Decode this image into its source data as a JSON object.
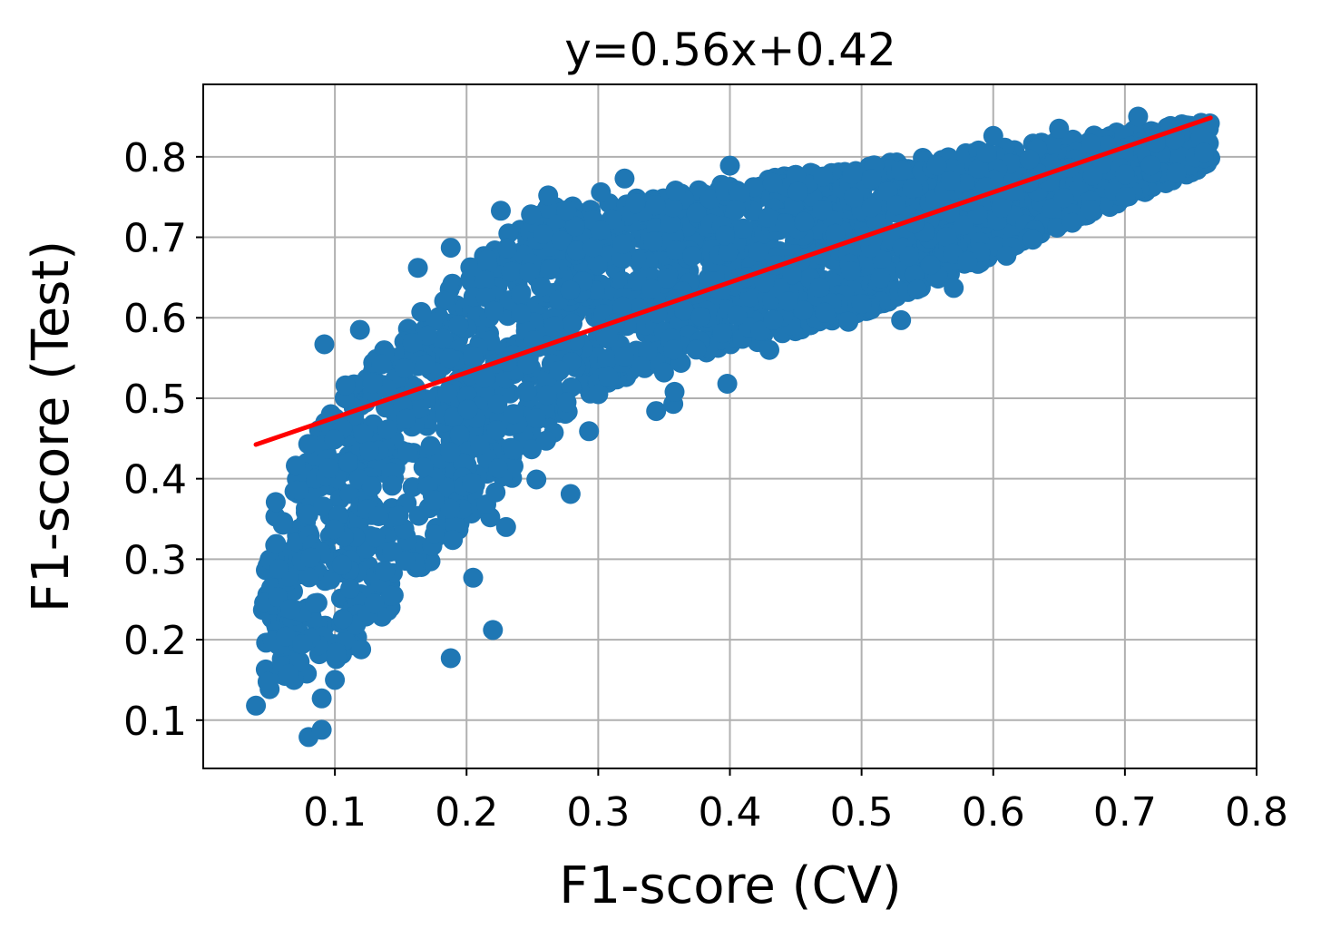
{
  "chart_data": {
    "type": "scatter",
    "title": "y=0.56x+0.42",
    "xlabel": "F1-score (CV)",
    "ylabel": "F1-score (Test)",
    "xlim": [
      0.0,
      0.8
    ],
    "ylim": [
      0.04,
      0.89
    ],
    "xticks": [
      0.1,
      0.2,
      0.3,
      0.4,
      0.5,
      0.6,
      0.7,
      0.8
    ],
    "xtick_labels": [
      "0.1",
      "0.2",
      "0.3",
      "0.4",
      "0.5",
      "0.6",
      "0.7",
      "0.8"
    ],
    "yticks": [
      0.1,
      0.2,
      0.3,
      0.4,
      0.5,
      0.6,
      0.7,
      0.8
    ],
    "ytick_labels": [
      "0.1",
      "0.2",
      "0.3",
      "0.4",
      "0.5",
      "0.6",
      "0.7",
      "0.8"
    ],
    "grid": true,
    "colors": {
      "points": "#1f77b4",
      "fit_line": "#ff0000"
    },
    "fit_line": {
      "slope": 0.56,
      "intercept": 0.42,
      "x": [
        0.04,
        0.765
      ]
    },
    "series": [
      {
        "points": [
          [
            0.04,
            0.118
          ],
          [
            0.08,
            0.079
          ],
          [
            0.09,
            0.088
          ],
          [
            0.09,
            0.127
          ],
          [
            0.1,
            0.15
          ],
          [
            0.12,
            0.188
          ],
          [
            0.13,
            0.245
          ],
          [
            0.188,
            0.177
          ],
          [
            0.22,
            0.212
          ],
          [
            0.205,
            0.277
          ],
          [
            0.23,
            0.34
          ],
          [
            0.218,
            0.352
          ],
          [
            0.215,
            0.368
          ],
          [
            0.222,
            0.383
          ],
          [
            0.204,
            0.395
          ],
          [
            0.224,
            0.413
          ],
          [
            0.253,
            0.399
          ],
          [
            0.236,
            0.436
          ],
          [
            0.279,
            0.381
          ],
          [
            0.293,
            0.459
          ],
          [
            0.344,
            0.484
          ],
          [
            0.357,
            0.493
          ],
          [
            0.358,
            0.508
          ],
          [
            0.35,
            0.532
          ],
          [
            0.3,
            0.505
          ],
          [
            0.398,
            0.518
          ],
          [
            0.092,
            0.567
          ],
          [
            0.119,
            0.585
          ],
          [
            0.108,
            0.516
          ],
          [
            0.163,
            0.662
          ],
          [
            0.188,
            0.687
          ],
          [
            0.226,
            0.733
          ],
          [
            0.262,
            0.752
          ],
          [
            0.302,
            0.756
          ],
          [
            0.32,
            0.773
          ],
          [
            0.4,
            0.789
          ],
          [
            0.43,
            0.56
          ],
          [
            0.49,
            0.595
          ],
          [
            0.53,
            0.597
          ],
          [
            0.57,
            0.637
          ],
          [
            0.61,
            0.677
          ],
          [
            0.63,
            0.697
          ],
          [
            0.66,
            0.718
          ],
          [
            0.7,
            0.778
          ],
          [
            0.76,
            0.805
          ],
          [
            0.71,
            0.85
          ],
          [
            0.65,
            0.835
          ],
          [
            0.6,
            0.826
          ]
        ]
      }
    ]
  }
}
